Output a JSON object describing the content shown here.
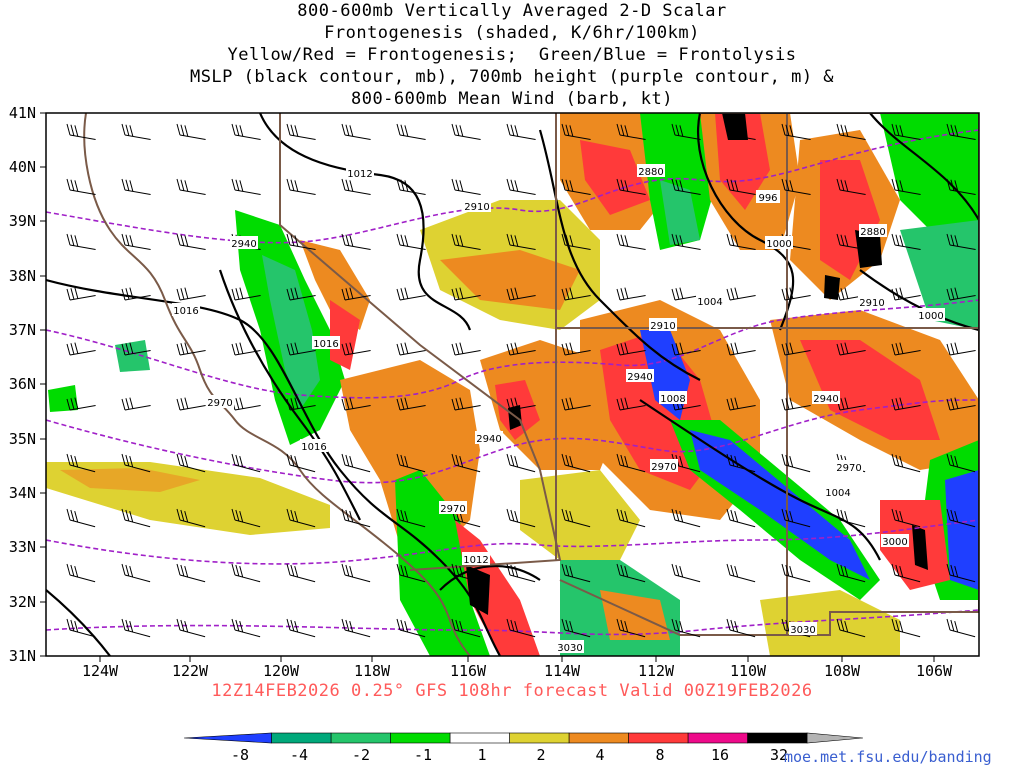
{
  "title_lines": [
    "800-600mb Vertically Averaged 2-D Scalar",
    "Frontogenesis (shaded, K/6hr/100km)",
    "Yellow/Red = Frontogenesis;  Green/Blue = Frontolysis",
    "MSLP (black contour, mb), 700mb height (purple contour, m) &",
    "800-600mb Mean Wind (barb, kt)"
  ],
  "lat_labels": [
    "41N",
    "40N",
    "39N",
    "38N",
    "37N",
    "36N",
    "35N",
    "34N",
    "33N",
    "32N",
    "31N"
  ],
  "lon_labels": [
    "124W",
    "122W",
    "120W",
    "118W",
    "116W",
    "114W",
    "112W",
    "110W",
    "108W",
    "106W"
  ],
  "isobar_labels": [
    "1012",
    "1016",
    "1016",
    "1016",
    "1012",
    "1008",
    "1004",
    "1000",
    "1000",
    "1004",
    "996"
  ],
  "height_labels": [
    "2940",
    "2970",
    "2910",
    "2880",
    "2910",
    "2940",
    "2940",
    "2970",
    "2970",
    "2940",
    "2970",
    "2910",
    "2880",
    "3000",
    "3030",
    "3030"
  ],
  "subtitle": "12Z14FEB2026 0.25° GFS 108hr forecast Valid 00Z19FEB2026",
  "colorbar_labels": [
    "-8",
    "-4",
    "-2",
    "-1",
    "1",
    "2",
    "4",
    "8",
    "16",
    "32"
  ],
  "colorbar_colors": [
    "#1f3fff",
    "#00a87a",
    "#25c56b",
    "#00dc00",
    "#ffffff",
    "#ded232",
    "#ed8a20",
    "#ff3a3a",
    "#ee0a8a",
    "#000000",
    "#b4b4b4"
  ],
  "credit": "moe.met.fsu.edu/banding"
}
